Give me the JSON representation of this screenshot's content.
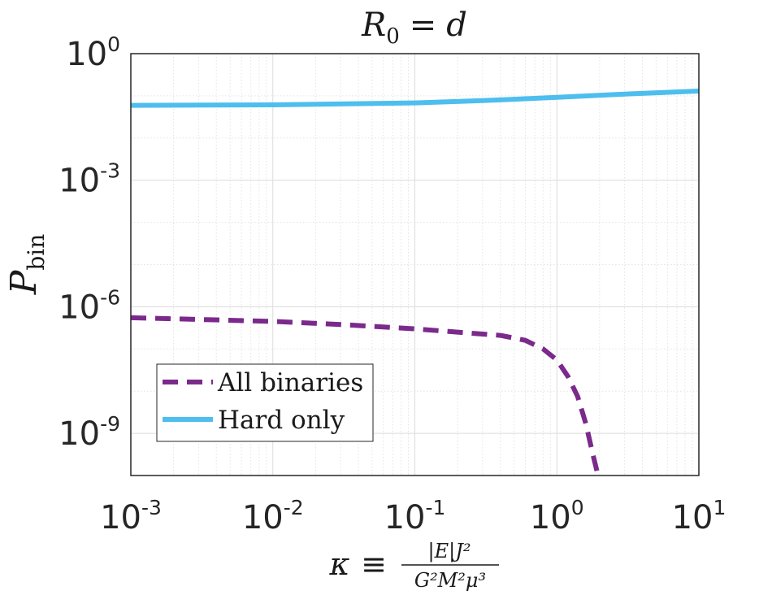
{
  "chart_data": {
    "type": "line",
    "title": "R_0 = d",
    "title_parts": {
      "var": "R",
      "sub": "0",
      "eq": "=",
      "rhs": "d"
    },
    "xlabel": "κ ≡ |E|J² / (G²M²μ³)",
    "xlabel_parts": {
      "kappa": "κ",
      "equiv": "≡",
      "numerator": "|E|J²",
      "denominator": "G²M²μ³"
    },
    "ylabel": "P_bin",
    "ylabel_parts": {
      "main": "P",
      "sub": "bin"
    },
    "xscale": "log",
    "yscale": "log",
    "xlim": [
      0.001,
      10
    ],
    "ylim": [
      1e-10,
      1
    ],
    "grid": true,
    "minor_grid": true,
    "legend_position": "bottom-left",
    "x_ticks": [
      {
        "value": 0.001,
        "base": "10",
        "exp": "-3"
      },
      {
        "value": 0.01,
        "base": "10",
        "exp": "-2"
      },
      {
        "value": 0.1,
        "base": "10",
        "exp": "-1"
      },
      {
        "value": 1,
        "base": "10",
        "exp": "0"
      },
      {
        "value": 10,
        "base": "10",
        "exp": "1"
      }
    ],
    "y_ticks": [
      {
        "value": 1,
        "base": "10",
        "exp": "0"
      },
      {
        "value": 0.001,
        "base": "10",
        "exp": "-3"
      },
      {
        "value": 1e-06,
        "base": "10",
        "exp": "-6"
      },
      {
        "value": 1e-09,
        "base": "10",
        "exp": "-9"
      }
    ],
    "series": [
      {
        "name": "All binaries",
        "style": "dashed",
        "color": "#7B2A8C",
        "points": [
          [
            0.001,
            5.5e-07
          ],
          [
            0.003,
            5e-07
          ],
          [
            0.01,
            4.5e-07
          ],
          [
            0.03,
            3.8e-07
          ],
          [
            0.1,
            3e-07
          ],
          [
            0.2,
            2.5e-07
          ],
          [
            0.4,
            2.1e-07
          ],
          [
            0.6,
            1.6e-07
          ],
          [
            0.8,
            1e-07
          ],
          [
            1.0,
            5.5e-08
          ],
          [
            1.2,
            2.2e-08
          ],
          [
            1.4,
            7.5e-09
          ],
          [
            1.6,
            1.7e-09
          ],
          [
            1.8,
            3e-10
          ],
          [
            1.95,
            1e-10
          ]
        ]
      },
      {
        "name": "Hard only",
        "style": "solid",
        "color": "#4DBEEE",
        "points": [
          [
            0.001,
            0.0595
          ],
          [
            0.01,
            0.061
          ],
          [
            0.1,
            0.068
          ],
          [
            0.3,
            0.077
          ],
          [
            1.0,
            0.092
          ],
          [
            3.0,
            0.11
          ],
          [
            10,
            0.13
          ]
        ]
      }
    ]
  }
}
